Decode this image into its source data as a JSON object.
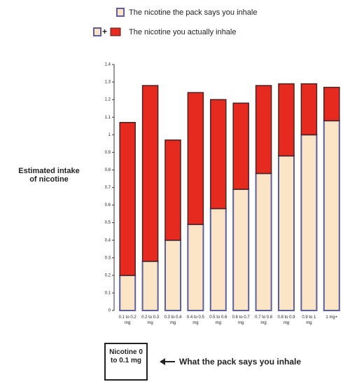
{
  "chart_data": {
    "type": "stacked_bar",
    "y_label": "Estimated intake of nicotine",
    "legend_plus": "+",
    "categories": [
      "0.1 to 0.2 mg",
      "0.2 to 0.3 mg",
      "0.3 to 0.4 mg",
      "0.4 to 0.5 mg",
      "0.5 to 0.6 mg",
      "0.6 to 0.7 mg",
      "0.7 to 0.8 mg",
      "0.8 to 0.9 mg",
      "0.9 to 1 mg",
      "1 mg+"
    ],
    "series": [
      {
        "name": "The nicotine the pack says you inhale",
        "color": "#fbe3c6",
        "stroke": "#5b5f9c",
        "values": [
          0.2,
          0.28,
          0.4,
          0.49,
          0.58,
          0.69,
          0.78,
          0.88,
          1.0,
          1.08
        ]
      },
      {
        "name": "The nicotine you actually inhale",
        "color": "#e62a1f",
        "stroke": "#4a2222",
        "values": [
          0.87,
          1.0,
          0.57,
          0.75,
          0.62,
          0.49,
          0.5,
          0.41,
          0.29,
          0.19
        ]
      }
    ],
    "ylim": [
      0,
      1.4
    ],
    "yticks": [
      0,
      0.1,
      0.2,
      0.3,
      0.4,
      0.5,
      0.6,
      0.7,
      0.8,
      0.9,
      1,
      1.1,
      1.2,
      1.3,
      1.4
    ],
    "annotation": {
      "box": "Nicotine 0 to 0.1 mg",
      "text": "What the pack says you inhale"
    }
  }
}
